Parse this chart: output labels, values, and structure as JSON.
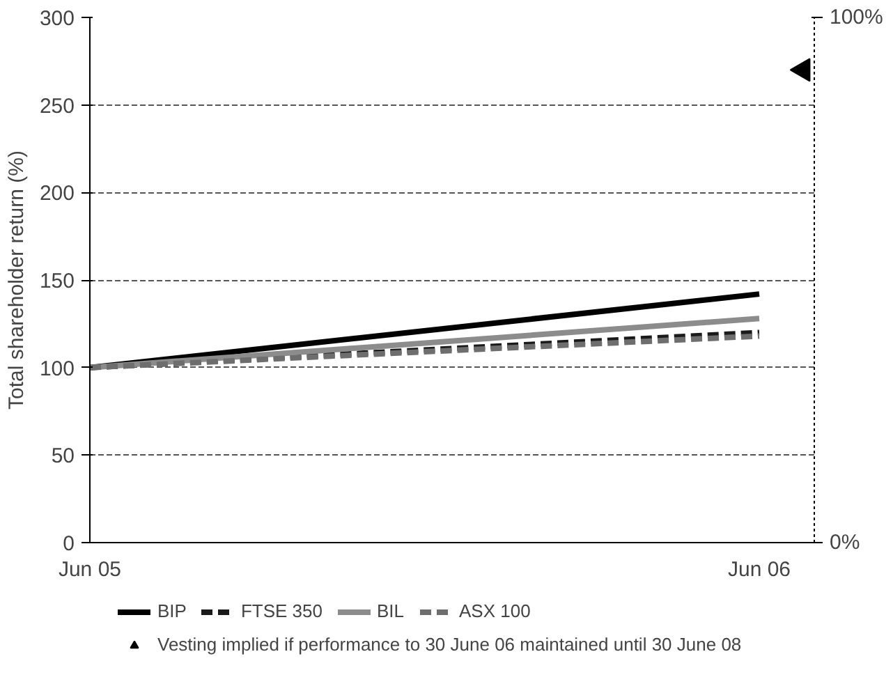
{
  "chart_data": {
    "type": "line",
    "ylabel": "Total shareholder return (%)",
    "x": [
      "2005-06",
      "2006-06"
    ],
    "xlim": [
      "2005-06",
      "2006-07"
    ],
    "xticks": [
      {
        "value": "2005-06",
        "label": "Jun 05"
      },
      {
        "value": "2006-06",
        "label": "Jun 06"
      }
    ],
    "ylim": [
      0,
      300
    ],
    "yticks": [
      0,
      50,
      100,
      150,
      200,
      250,
      300
    ],
    "y2lim": [
      0,
      100
    ],
    "y2ticks": [
      {
        "value": 0,
        "label": "0%"
      },
      {
        "value": 100,
        "label": "100%"
      }
    ],
    "grid": "y",
    "legend": "bottom",
    "series": [
      {
        "name": "BIP",
        "color": "#000000",
        "values": [
          100,
          142
        ],
        "line_style": "solid"
      },
      {
        "name": "FTSE 350",
        "color": "#1a1a1a",
        "values": [
          100,
          120
        ],
        "line_style": "dashed"
      },
      {
        "name": "BIL",
        "color": "#8c8c8c",
        "values": [
          100,
          128
        ],
        "line_style": "solid"
      },
      {
        "name": "ASX 100",
        "color": "#6e6e6e",
        "values": [
          100,
          118
        ],
        "line_style": "dashed"
      },
      {
        "name": "Vesting implied if performance to 30 June 06 maintained until 30 June 08",
        "type": "scatter",
        "marker": "triangle",
        "axis": "y2",
        "color": "#000000",
        "x": [
          "2006-06-25"
        ],
        "values": [
          90
        ]
      }
    ]
  }
}
